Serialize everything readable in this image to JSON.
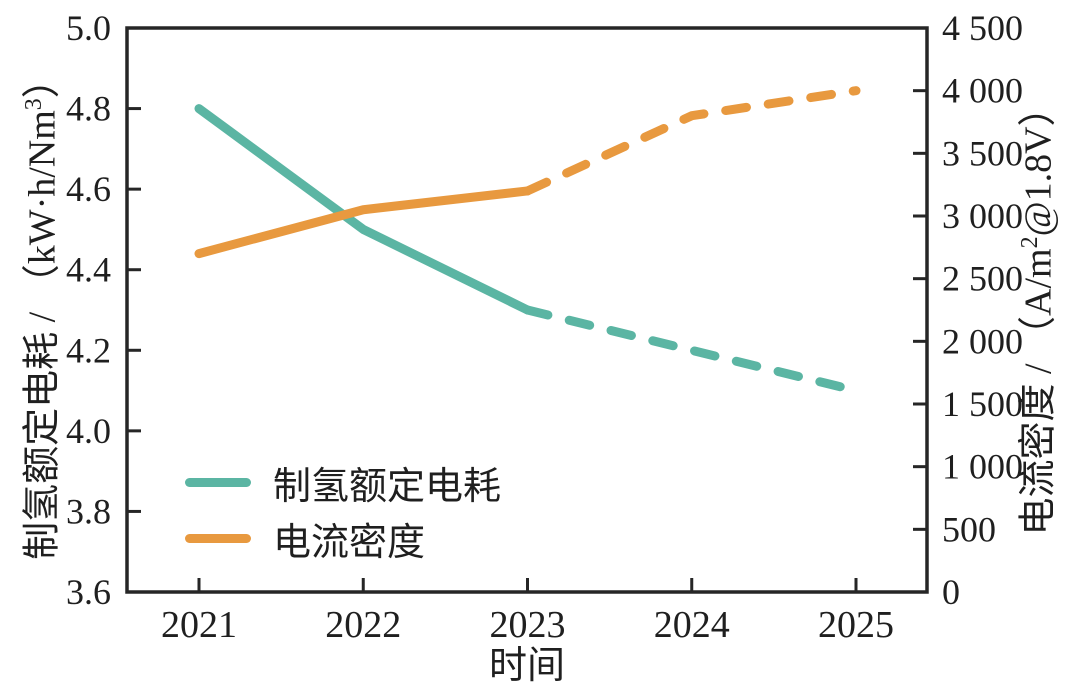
{
  "chart_data": {
    "type": "line",
    "title": "",
    "xlabel": "时间",
    "x": [
      2021,
      2022,
      2023,
      2024,
      2025
    ],
    "x_tick_labels": [
      "2021",
      "2022",
      "2023",
      "2024",
      "2025"
    ],
    "axis_color": "#262626",
    "text_color": "#1f1f1f",
    "grid": false,
    "left_axis": {
      "title": "制氢额定电耗 / （kW·h/Nm³）",
      "title_prefix": "制氢额定电耗 / （kW·h/Nm",
      "title_sup": "3",
      "title_suffix": "）",
      "min": 3.6,
      "max": 5.0,
      "ticks": [
        5.0,
        4.8,
        4.6,
        4.4,
        4.2,
        4.0,
        3.8,
        3.6
      ],
      "tick_labels": [
        "5.0",
        "4.8",
        "4.6",
        "4.4",
        "4.2",
        "4.0",
        "3.8",
        "3.6"
      ]
    },
    "right_axis": {
      "title": "电流密度 / （A/m²@1.8V）",
      "title_prefix": "电流密度 / （A/m",
      "title_sup": "2",
      "title_suffix": "@1.8V）",
      "min": 0,
      "max": 4500,
      "ticks": [
        4500,
        4000,
        3500,
        3000,
        2500,
        2000,
        1500,
        1000,
        500,
        0
      ],
      "tick_labels": [
        "4 500",
        "4 000",
        "3 500",
        "3 000",
        "2 500",
        "2 000",
        "1 500",
        "1 000",
        "500",
        "0"
      ]
    },
    "series": [
      {
        "name": "制氢额定电耗",
        "axis": "left",
        "color": "#5bb5a3",
        "values": [
          4.8,
          4.5,
          4.3,
          4.2,
          4.1
        ],
        "dash_from_index": 2,
        "style_note": "solid 2021-2023, dashed 2023-2025"
      },
      {
        "name": "电流密度",
        "axis": "right",
        "color": "#e8993f",
        "values": [
          2700,
          3050,
          3200,
          3800,
          4000
        ],
        "dash_from_index": 2,
        "style_note": "solid 2021-2023, dashed 2023-2025"
      }
    ],
    "legend": {
      "position": "lower-left",
      "items": [
        "制氢额定电耗",
        "电流密度"
      ]
    }
  }
}
